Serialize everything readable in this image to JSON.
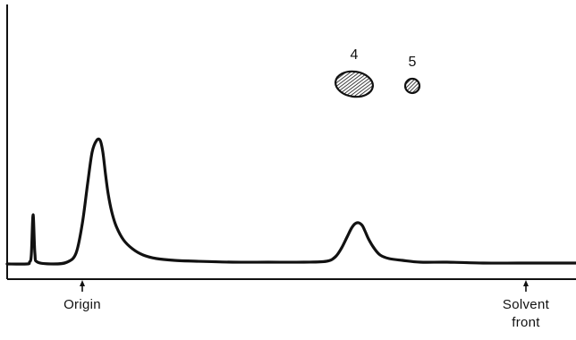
{
  "chart_data": {
    "type": "line",
    "title": "",
    "xlabel": "",
    "ylabel": "",
    "xlim": [
      0,
      644
    ],
    "ylim": [
      0,
      300
    ],
    "grid": false,
    "legend": "none",
    "series": [
      {
        "x": [
          8,
          30,
          33,
          35,
          37,
          39,
          42,
          60,
          75,
          85,
          92,
          98,
          103,
          108,
          112,
          115,
          118,
          121,
          125,
          130,
          138,
          148,
          160,
          175,
          195,
          220,
          260,
          300,
          340,
          365,
          375,
          382,
          388,
          393,
          397,
          401,
          405,
          408,
          412,
          418,
          425,
          435,
          450,
          470,
          500,
          540,
          580,
          620,
          644
        ],
        "y": [
          0,
          0,
          2,
          10,
          55,
          12,
          2,
          0,
          2,
          12,
          45,
          90,
          125,
          138,
          138,
          125,
          100,
          78,
          58,
          42,
          27,
          17,
          10,
          6,
          4,
          3,
          2,
          2,
          2,
          3,
          8,
          18,
          30,
          40,
          45,
          46,
          43,
          37,
          28,
          18,
          10,
          6,
          4,
          2,
          2,
          1,
          1,
          1,
          1
        ],
        "color": "#111111"
      }
    ],
    "spots": [
      {
        "label": "4",
        "cx": 396,
        "cy": 94,
        "rx": 21,
        "ry": 14,
        "pattern": "hatched"
      },
      {
        "label": "5",
        "cx": 461,
        "cy": 96,
        "rx": 8,
        "ry": 8,
        "pattern": "hatched"
      }
    ],
    "annotations": [
      {
        "id": "origin",
        "x": 92,
        "lines": [
          "Origin"
        ]
      },
      {
        "id": "solvent-front",
        "x": 588,
        "lines": [
          "Solvent",
          "front"
        ]
      }
    ]
  }
}
